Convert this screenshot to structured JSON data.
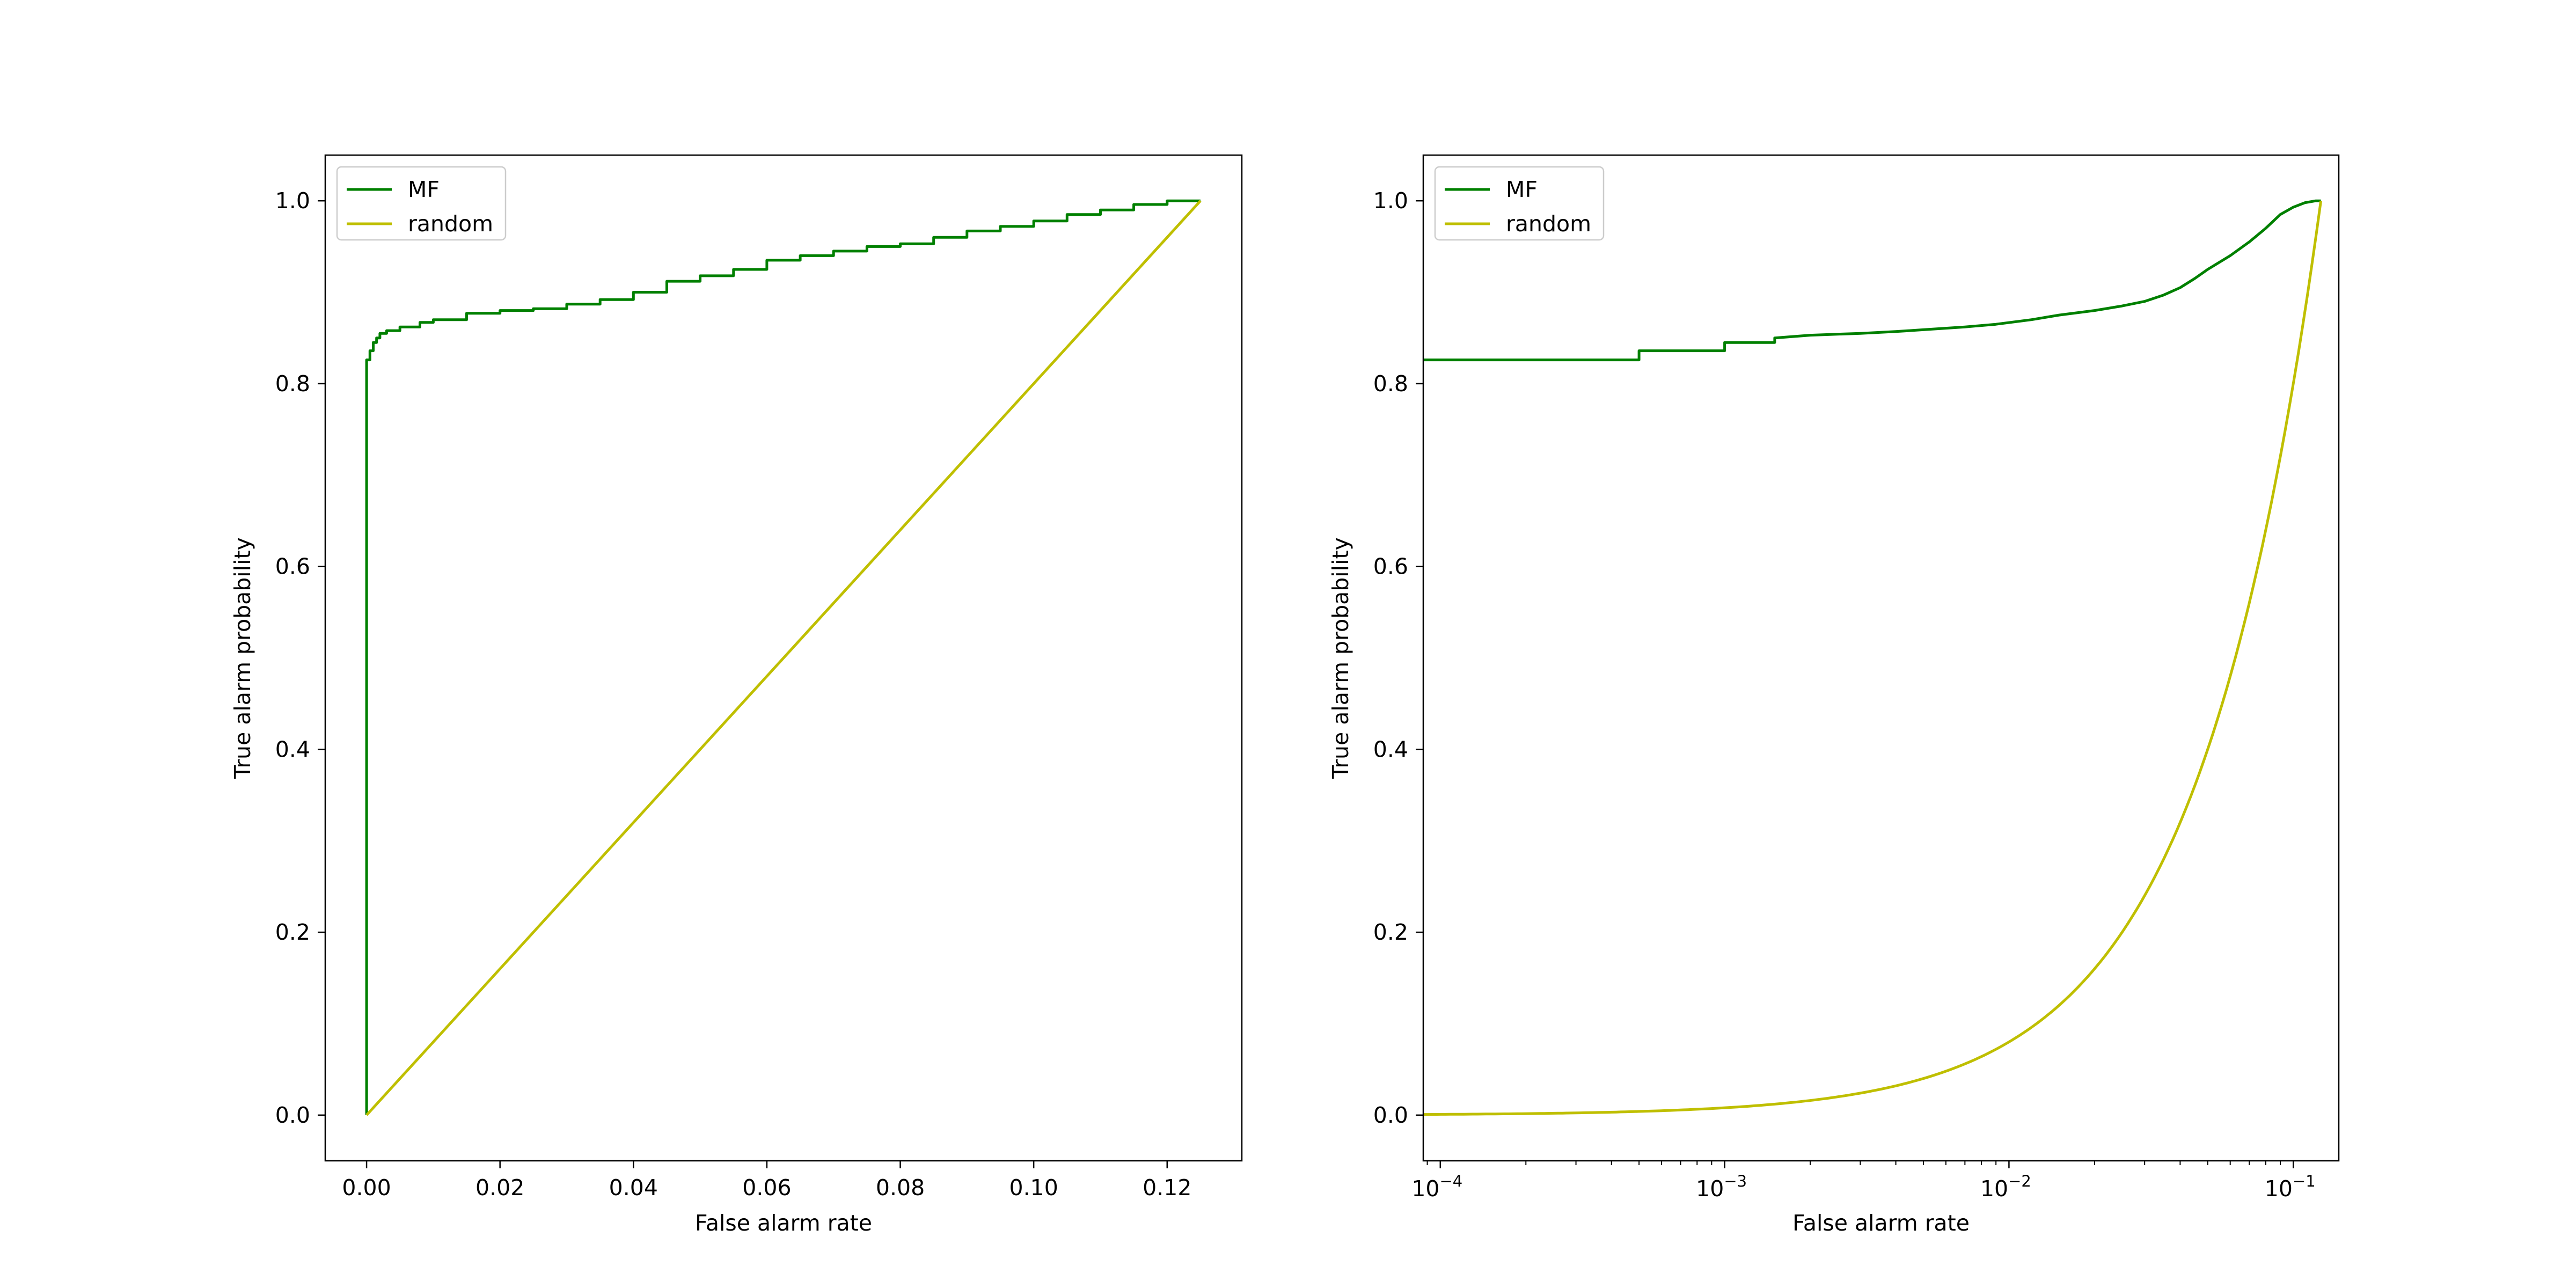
{
  "chart_data": [
    {
      "type": "line",
      "xscale": "linear",
      "xlabel": "False alarm rate",
      "ylabel": "True alarm probability",
      "xlim": [
        -0.0062,
        0.1312
      ],
      "ylim": [
        -0.05,
        1.05
      ],
      "xticks": [
        0.0,
        0.02,
        0.04,
        0.06,
        0.08,
        0.1,
        0.12
      ],
      "xtick_labels": [
        "0.00",
        "0.02",
        "0.04",
        "0.06",
        "0.08",
        "0.10",
        "0.12"
      ],
      "yticks": [
        0.0,
        0.2,
        0.4,
        0.6,
        0.8,
        1.0
      ],
      "ytick_labels": [
        "0.0",
        "0.2",
        "0.4",
        "0.6",
        "0.8",
        "1.0"
      ],
      "legend_position": "top-left",
      "series": [
        {
          "name": "MF",
          "color": "#008000",
          "x": [
            0,
            0,
            0.0005,
            0.001,
            0.0015,
            0.002,
            0.003,
            0.005,
            0.008,
            0.01,
            0.015,
            0.02,
            0.025,
            0.03,
            0.035,
            0.04,
            0.045,
            0.05,
            0.055,
            0.06,
            0.065,
            0.07,
            0.075,
            0.08,
            0.085,
            0.09,
            0.095,
            0.1,
            0.105,
            0.11,
            0.115,
            0.12,
            0.125
          ],
          "y": [
            0,
            0.826,
            0.836,
            0.845,
            0.85,
            0.855,
            0.858,
            0.862,
            0.867,
            0.87,
            0.877,
            0.88,
            0.882,
            0.887,
            0.892,
            0.9,
            0.912,
            0.918,
            0.925,
            0.935,
            0.94,
            0.945,
            0.95,
            0.953,
            0.96,
            0.967,
            0.972,
            0.978,
            0.985,
            0.99,
            0.996,
            1.0,
            1.0
          ]
        },
        {
          "name": "random",
          "color": "#bfbf00",
          "x": [
            0,
            0.125
          ],
          "y": [
            0,
            1.0
          ]
        }
      ]
    },
    {
      "type": "line",
      "xscale": "log",
      "xlabel": "False alarm rate",
      "ylabel": "True alarm probability",
      "xlim_log10": [
        -4.06,
        -0.84
      ],
      "ylim": [
        -0.05,
        1.05
      ],
      "xticks_log10": [
        -4,
        -3,
        -2,
        -1
      ],
      "xtick_bases": [
        "10",
        "10",
        "10",
        "10"
      ],
      "xtick_exponents": [
        "−4",
        "−3",
        "−2",
        "−1"
      ],
      "yticks": [
        0.0,
        0.2,
        0.4,
        0.6,
        0.8,
        1.0
      ],
      "ytick_labels": [
        "0.0",
        "0.2",
        "0.4",
        "0.6",
        "0.8",
        "1.0"
      ],
      "legend_position": "top-left",
      "series": [
        {
          "name": "MF",
          "color": "#008000",
          "x": [
            8.7e-05,
            0.0005,
            0.0005,
            0.001,
            0.001,
            0.0015,
            0.0015,
            0.002,
            0.003,
            0.004,
            0.005,
            0.007,
            0.009,
            0.012,
            0.015,
            0.02,
            0.025,
            0.03,
            0.035,
            0.04,
            0.045,
            0.05,
            0.06,
            0.07,
            0.08,
            0.09,
            0.1,
            0.11,
            0.12,
            0.125
          ],
          "y": [
            0.826,
            0.826,
            0.836,
            0.836,
            0.845,
            0.845,
            0.85,
            0.853,
            0.855,
            0.857,
            0.859,
            0.862,
            0.865,
            0.87,
            0.875,
            0.88,
            0.885,
            0.89,
            0.897,
            0.905,
            0.915,
            0.925,
            0.94,
            0.955,
            0.97,
            0.985,
            0.993,
            0.998,
            1.0,
            1.0
          ]
        },
        {
          "name": "random",
          "color": "#bfbf00",
          "x_formula": "linear x/0.125 on log axis",
          "x": [
            8.7e-05,
            0.0002,
            0.0005,
            0.001,
            0.002,
            0.005,
            0.01,
            0.02,
            0.03,
            0.05,
            0.07,
            0.09,
            0.11,
            0.125
          ],
          "y": [
            0.0007,
            0.0016,
            0.004,
            0.008,
            0.016,
            0.04,
            0.08,
            0.16,
            0.24,
            0.4,
            0.56,
            0.72,
            0.88,
            1.0
          ]
        }
      ]
    }
  ]
}
